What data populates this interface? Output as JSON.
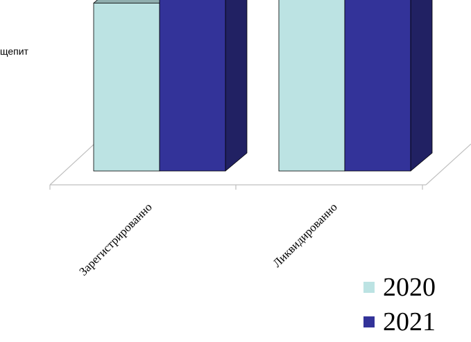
{
  "subtitle": "щепит",
  "chart_data": {
    "type": "bar",
    "categories": [
      "Зарегистрированно",
      "Ликвидированно"
    ],
    "series": [
      {
        "name": "2020",
        "values": [
          99,
          168
        ],
        "color": "#BCE3E3"
      },
      {
        "name": "2021",
        "values": [
          104,
          166
        ],
        "color": "#333399"
      }
    ],
    "data_labels": true,
    "legend_position": "bottom-right",
    "three_d": true,
    "grid": false
  }
}
